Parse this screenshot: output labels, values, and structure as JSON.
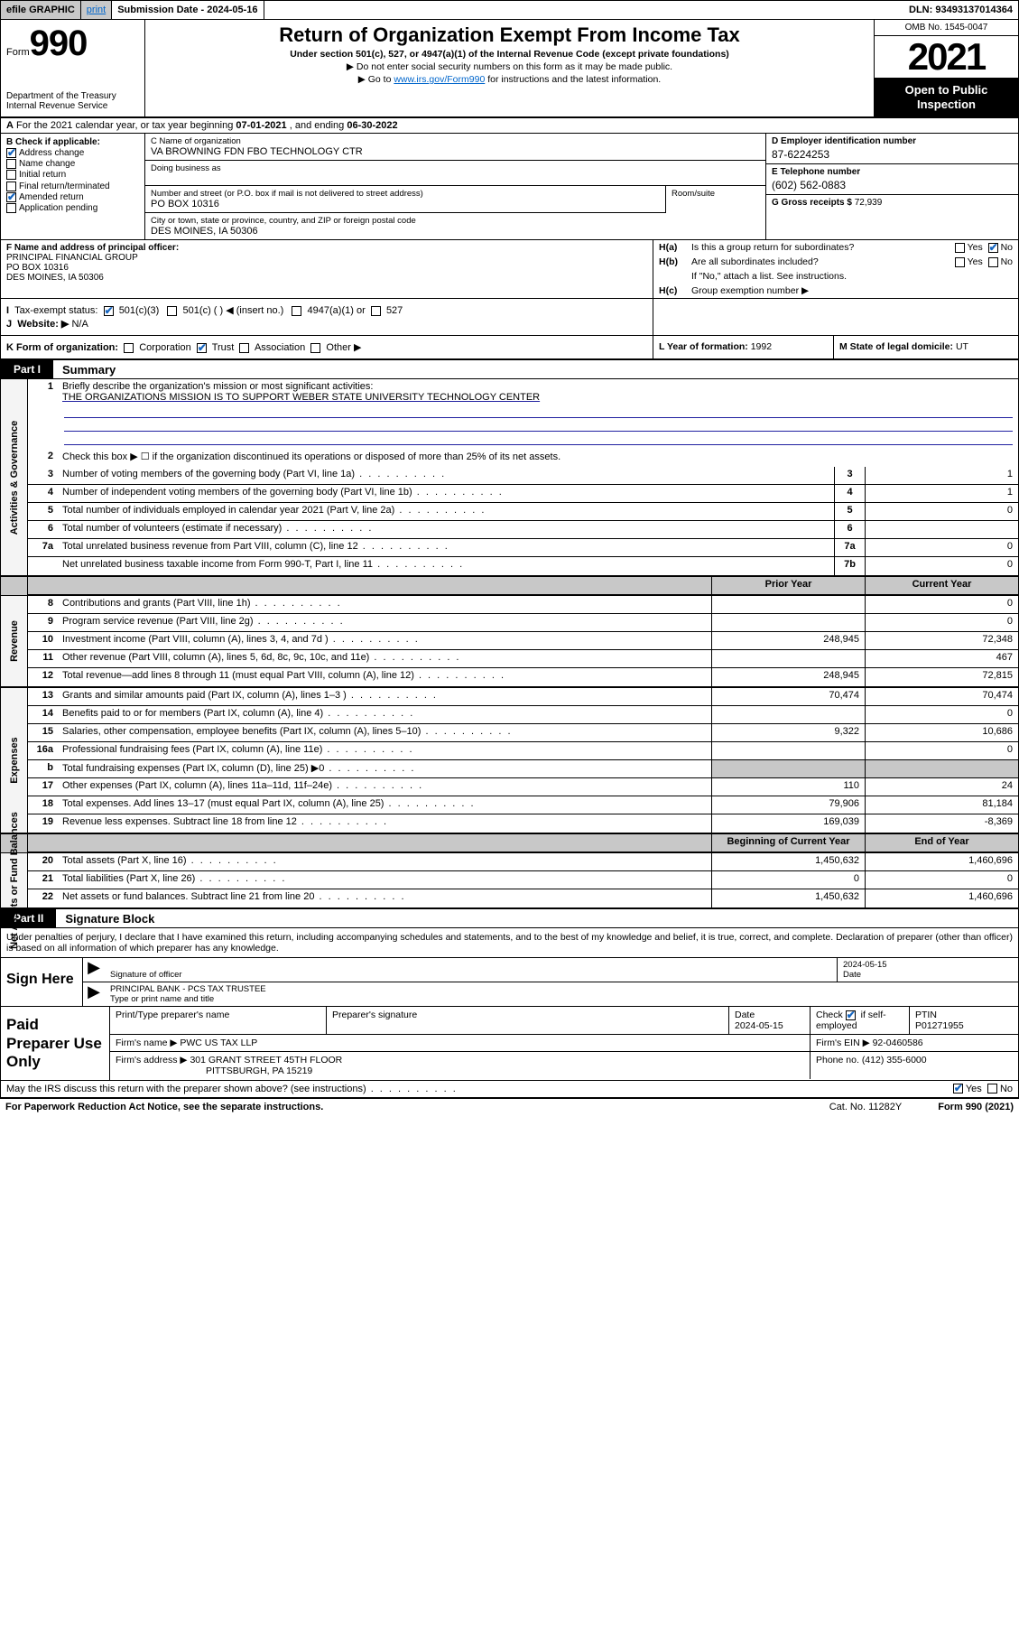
{
  "topbar": {
    "efile": "efile GRAPHIC",
    "print": "print",
    "submission": "Submission Date - 2024-05-16",
    "dln": "DLN: 93493137014364"
  },
  "header": {
    "form_word": "Form",
    "form_no": "990",
    "dept": "Department of the Treasury",
    "irs": "Internal Revenue Service",
    "title": "Return of Organization Exempt From Income Tax",
    "sub": "Under section 501(c), 527, or 4947(a)(1) of the Internal Revenue Code (except private foundations)",
    "note1": "▶ Do not enter social security numbers on this form as it may be made public.",
    "note2_pre": "▶ Go to ",
    "note2_link": "www.irs.gov/Form990",
    "note2_post": " for instructions and the latest information.",
    "omb": "OMB No. 1545-0047",
    "year": "2021",
    "inspect": "Open to Public Inspection"
  },
  "rowA": {
    "label": "A",
    "text_pre": "For the 2021 calendar year, or tax year beginning ",
    "begin": "07-01-2021",
    "mid": " , and ending ",
    "end": "06-30-2022"
  },
  "colB": {
    "hdr": "B Check if applicable:",
    "opts": [
      "Address change",
      "Name change",
      "Initial return",
      "Final return/terminated",
      "Amended return",
      "Application pending"
    ],
    "checked": [
      true,
      false,
      false,
      false,
      true,
      false
    ]
  },
  "colC": {
    "name_lbl": "C Name of organization",
    "name": "VA BROWNING FDN FBO TECHNOLOGY CTR",
    "dba_lbl": "Doing business as",
    "dba": "",
    "street_lbl": "Number and street (or P.O. box if mail is not delivered to street address)",
    "street": "PO BOX 10316",
    "suite_lbl": "Room/suite",
    "city_lbl": "City or town, state or province, country, and ZIP or foreign postal code",
    "city": "DES MOINES, IA  50306"
  },
  "colD": {
    "ein_lbl": "D Employer identification number",
    "ein": "87-6224253",
    "phone_lbl": "E Telephone number",
    "phone": "(602) 562-0883",
    "gross_lbl": "G Gross receipts $",
    "gross": "72,939"
  },
  "fh": {
    "f_lbl": "F Name and address of principal officer:",
    "f_val": "PRINCIPAL FINANCIAL GROUP\nPO BOX 10316\nDES MOINES, IA  50306",
    "ha": "Is this a group return for subordinates?",
    "ha_yes": "Yes",
    "ha_no": "No",
    "hb": "Are all subordinates included?",
    "hb_note": "If \"No,\" attach a list. See instructions.",
    "hc": "Group exemption number ▶"
  },
  "ij": {
    "i_lbl": "Tax-exempt status:",
    "i_501c3": "501(c)(3)",
    "i_501c": "501(c) (   ) ◀ (insert no.)",
    "i_4947": "4947(a)(1) or",
    "i_527": "527",
    "j_lbl": "Website: ▶",
    "j_val": "N/A"
  },
  "klm": {
    "k_lbl": "K Form of organization:",
    "k_opts": [
      "Corporation",
      "Trust",
      "Association",
      "Other ▶"
    ],
    "k_checked": [
      false,
      true,
      false,
      false
    ],
    "l_lbl": "L Year of formation:",
    "l_val": "1992",
    "m_lbl": "M State of legal domicile:",
    "m_val": "UT"
  },
  "part1": {
    "tag": "Part I",
    "title": "Summary"
  },
  "summary": {
    "sect1_label": "Activities & Governance",
    "l1_lbl": "Briefly describe the organization's mission or most significant activities:",
    "l1_val": "THE ORGANIZATIONS MISSION IS TO SUPPORT WEBER STATE UNIVERSITY TECHNOLOGY CENTER",
    "l2": "Check this box ▶ ☐  if the organization discontinued its operations or disposed of more than 25% of its net assets.",
    "rows_gov": [
      {
        "no": "3",
        "txt": "Number of voting members of the governing body (Part VI, line 1a)",
        "box": "3",
        "val": "1"
      },
      {
        "no": "4",
        "txt": "Number of independent voting members of the governing body (Part VI, line 1b)",
        "box": "4",
        "val": "1"
      },
      {
        "no": "5",
        "txt": "Total number of individuals employed in calendar year 2021 (Part V, line 2a)",
        "box": "5",
        "val": "0"
      },
      {
        "no": "6",
        "txt": "Total number of volunteers (estimate if necessary)",
        "box": "6",
        "val": ""
      },
      {
        "no": "7a",
        "txt": "Total unrelated business revenue from Part VIII, column (C), line 12",
        "box": "7a",
        "val": "0"
      },
      {
        "no": "",
        "txt": "Net unrelated business taxable income from Form 990-T, Part I, line 11",
        "box": "7b",
        "val": "0"
      }
    ],
    "hdr_prior": "Prior Year",
    "hdr_curr": "Current Year",
    "sect2_label": "Revenue",
    "rows_rev": [
      {
        "no": "8",
        "txt": "Contributions and grants (Part VIII, line 1h)",
        "p": "",
        "c": "0"
      },
      {
        "no": "9",
        "txt": "Program service revenue (Part VIII, line 2g)",
        "p": "",
        "c": "0"
      },
      {
        "no": "10",
        "txt": "Investment income (Part VIII, column (A), lines 3, 4, and 7d )",
        "p": "248,945",
        "c": "72,348"
      },
      {
        "no": "11",
        "txt": "Other revenue (Part VIII, column (A), lines 5, 6d, 8c, 9c, 10c, and 11e)",
        "p": "",
        "c": "467"
      },
      {
        "no": "12",
        "txt": "Total revenue—add lines 8 through 11 (must equal Part VIII, column (A), line 12)",
        "p": "248,945",
        "c": "72,815"
      }
    ],
    "sect3_label": "Expenses",
    "rows_exp": [
      {
        "no": "13",
        "txt": "Grants and similar amounts paid (Part IX, column (A), lines 1–3 )",
        "p": "70,474",
        "c": "70,474"
      },
      {
        "no": "14",
        "txt": "Benefits paid to or for members (Part IX, column (A), line 4)",
        "p": "",
        "c": "0"
      },
      {
        "no": "15",
        "txt": "Salaries, other compensation, employee benefits (Part IX, column (A), lines 5–10)",
        "p": "9,322",
        "c": "10,686"
      },
      {
        "no": "16a",
        "txt": "Professional fundraising fees (Part IX, column (A), line 11e)",
        "p": "",
        "c": "0"
      },
      {
        "no": "b",
        "txt": "Total fundraising expenses (Part IX, column (D), line 25) ▶0",
        "p": "shade",
        "c": "shade"
      },
      {
        "no": "17",
        "txt": "Other expenses (Part IX, column (A), lines 11a–11d, 11f–24e)",
        "p": "110",
        "c": "24"
      },
      {
        "no": "18",
        "txt": "Total expenses. Add lines 13–17 (must equal Part IX, column (A), line 25)",
        "p": "79,906",
        "c": "81,184"
      },
      {
        "no": "19",
        "txt": "Revenue less expenses. Subtract line 18 from line 12",
        "p": "169,039",
        "c": "-8,369"
      }
    ],
    "hdr_begin": "Beginning of Current Year",
    "hdr_end": "End of Year",
    "sect4_label": "Net Assets or Fund Balances",
    "rows_net": [
      {
        "no": "20",
        "txt": "Total assets (Part X, line 16)",
        "p": "1,450,632",
        "c": "1,460,696"
      },
      {
        "no": "21",
        "txt": "Total liabilities (Part X, line 26)",
        "p": "0",
        "c": "0"
      },
      {
        "no": "22",
        "txt": "Net assets or fund balances. Subtract line 21 from line 20",
        "p": "1,450,632",
        "c": "1,460,696"
      }
    ]
  },
  "part2": {
    "tag": "Part II",
    "title": "Signature Block"
  },
  "sig": {
    "decl": "Under penalties of perjury, I declare that I have examined this return, including accompanying schedules and statements, and to the best of my knowledge and belief, it is true, correct, and complete. Declaration of preparer (other than officer) is based on all information of which preparer has any knowledge.",
    "sign_here": "Sign Here",
    "date": "2024-05-15",
    "sig_lbl": "Signature of officer",
    "date_lbl": "Date",
    "name": "PRINCIPAL BANK - PCS TAX  TRUSTEE",
    "name_lbl": "Type or print name and title"
  },
  "prep": {
    "label": "Paid Preparer Use Only",
    "h1": "Print/Type preparer's name",
    "h2": "Preparer's signature",
    "h3": "Date",
    "h3v": "2024-05-15",
    "h4a": "Check",
    "h4b": "if self-employed",
    "h5": "PTIN",
    "h5v": "P01271955",
    "firm_lbl": "Firm's name    ▶",
    "firm": "PWC US TAX LLP",
    "ein_lbl": "Firm's EIN ▶",
    "ein": "92-0460586",
    "addr_lbl": "Firm's address ▶",
    "addr1": "301 GRANT STREET 45TH FLOOR",
    "addr2": "PITTSBURGH, PA  15219",
    "phone_lbl": "Phone no.",
    "phone": "(412) 355-6000"
  },
  "discuss": {
    "txt": "May the IRS discuss this return with the preparer shown above? (see instructions)",
    "yes": "Yes",
    "no": "No"
  },
  "footer": {
    "l": "For Paperwork Reduction Act Notice, see the separate instructions.",
    "m": "Cat. No. 11282Y",
    "r": "Form 990 (2021)"
  }
}
